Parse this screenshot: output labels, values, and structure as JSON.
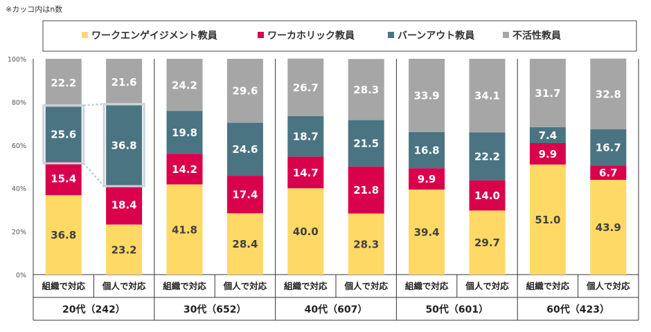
{
  "note": "※カッコ内はn数",
  "colors": {
    "engaged": "#FFD966",
    "workaholic": "#D9004C",
    "burnout": "#4A7482",
    "inactive": "#A6A6A6",
    "bar_label_dark": "#404040",
    "bar_label_light": "#ffffff"
  },
  "chart_data": {
    "type": "bar",
    "stacked": true,
    "legend_position": "top",
    "ylim": [
      0,
      100
    ],
    "yticks": [
      "0%",
      "20%",
      "40%",
      "60%",
      "80%",
      "100%"
    ],
    "groups": [
      {
        "label": "20代（242）",
        "categories": [
          "組織で対応",
          "個人で対応"
        ]
      },
      {
        "label": "30代（652）",
        "categories": [
          "組織で対応",
          "個人で対応"
        ]
      },
      {
        "label": "40代（607）",
        "categories": [
          "組織で対応",
          "個人で対応"
        ]
      },
      {
        "label": "50代（601）",
        "categories": [
          "組織で対応",
          "個人で対応"
        ]
      },
      {
        "label": "60代（423）",
        "categories": [
          "組織で対応",
          "個人で対応"
        ]
      }
    ],
    "series": [
      {
        "name": "ワークエンゲイジメント教員",
        "key": "engaged",
        "values": [
          36.8,
          23.2,
          41.8,
          28.4,
          40.0,
          28.3,
          39.4,
          29.7,
          51.0,
          43.9
        ],
        "labels": [
          "36.8",
          "23.2",
          "41.8",
          "28.4",
          "40.0",
          "28.3",
          "39.4",
          "29.7",
          "51.0",
          "43.9"
        ]
      },
      {
        "name": "ワーカホリック教員",
        "key": "workaholic",
        "values": [
          15.4,
          18.4,
          14.2,
          17.4,
          14.7,
          21.8,
          9.9,
          14.0,
          9.9,
          6.7
        ],
        "labels": [
          "15.4",
          "18.4",
          "14.2",
          "17.4",
          "14.7",
          "21.8",
          "9.9",
          "14.0",
          "9.9",
          "6.7"
        ]
      },
      {
        "name": "バーンアウト教員",
        "key": "burnout",
        "values": [
          25.6,
          36.8,
          19.8,
          24.6,
          18.7,
          21.5,
          16.8,
          22.2,
          7.4,
          16.7
        ],
        "labels": [
          "25.6",
          "36.8",
          "19.8",
          "24.6",
          "18.7",
          "21.5",
          "16.8",
          "22.2",
          "7.4",
          "16.7"
        ]
      },
      {
        "name": "不活性教員",
        "key": "inactive",
        "values": [
          22.2,
          21.6,
          24.2,
          29.6,
          26.7,
          28.3,
          33.9,
          34.1,
          31.7,
          32.8
        ],
        "labels": [
          "22.2",
          "21.6",
          "24.2",
          "29.6",
          "26.7",
          "28.3",
          "33.9",
          "34.1",
          "31.7",
          "32.8"
        ]
      }
    ],
    "highlight": {
      "group_index": 0,
      "series_key": "burnout"
    }
  }
}
